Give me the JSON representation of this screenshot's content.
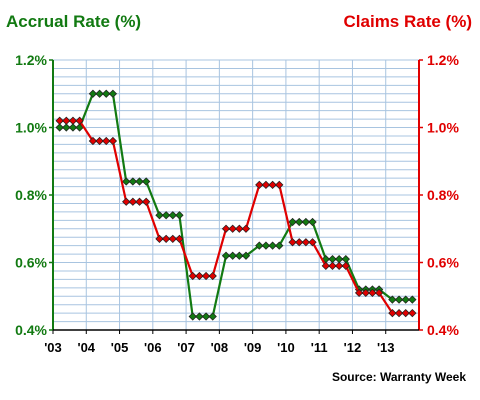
{
  "chart_data": {
    "type": "line",
    "left_axis_title": "Accrual Rate (%)",
    "right_axis_title": "Claims Rate (%)",
    "source": "Source: Warranty Week",
    "ylim": [
      0.4,
      1.2
    ],
    "yticks": [
      "0.4%",
      "0.6%",
      "0.8%",
      "1.0%",
      "1.2%"
    ],
    "xticks": [
      "'03",
      "'04",
      "'05",
      "'06",
      "'07",
      "'08",
      "'09",
      "'10",
      "'11",
      "'12",
      "'13"
    ],
    "grid": true,
    "x": [
      "2003 Q1",
      "2003 Q2",
      "2003 Q3",
      "2003 Q4",
      "2004 Q1",
      "2004 Q2",
      "2004 Q3",
      "2004 Q4",
      "2005 Q1",
      "2005 Q2",
      "2005 Q3",
      "2005 Q4",
      "2006 Q1",
      "2006 Q2",
      "2006 Q3",
      "2006 Q4",
      "2007 Q1",
      "2007 Q2",
      "2007 Q3",
      "2007 Q4",
      "2008 Q1",
      "2008 Q2",
      "2008 Q3",
      "2008 Q4",
      "2009 Q1",
      "2009 Q2",
      "2009 Q3",
      "2009 Q4",
      "2010 Q1",
      "2010 Q2",
      "2010 Q3",
      "2010 Q4",
      "2011 Q1",
      "2011 Q2",
      "2011 Q3",
      "2011 Q4",
      "2012 Q1",
      "2012 Q2",
      "2012 Q3",
      "2012 Q4",
      "2013 Q1",
      "2013 Q2",
      "2013 Q3",
      "2013 Q4"
    ],
    "series": [
      {
        "name": "Accrual Rate (%)",
        "color": "#127a12",
        "values": [
          1.0,
          1.0,
          1.0,
          1.0,
          1.1,
          1.1,
          1.1,
          1.1,
          0.84,
          0.84,
          0.84,
          0.84,
          0.74,
          0.74,
          0.74,
          0.74,
          0.44,
          0.44,
          0.44,
          0.44,
          0.62,
          0.62,
          0.62,
          0.62,
          0.65,
          0.65,
          0.65,
          0.65,
          0.72,
          0.72,
          0.72,
          0.72,
          0.61,
          0.61,
          0.61,
          0.61,
          0.52,
          0.52,
          0.52,
          0.52,
          0.49,
          0.49,
          0.49,
          0.49
        ]
      },
      {
        "name": "Claims Rate (%)",
        "color": "#e00000",
        "values": [
          1.02,
          1.02,
          1.02,
          1.02,
          0.96,
          0.96,
          0.96,
          0.96,
          0.78,
          0.78,
          0.78,
          0.78,
          0.67,
          0.67,
          0.67,
          0.67,
          0.56,
          0.56,
          0.56,
          0.56,
          0.7,
          0.7,
          0.7,
          0.7,
          0.83,
          0.83,
          0.83,
          0.83,
          0.66,
          0.66,
          0.66,
          0.66,
          0.59,
          0.59,
          0.59,
          0.59,
          0.51,
          0.51,
          0.51,
          0.51,
          0.45,
          0.45,
          0.45,
          0.45
        ]
      }
    ]
  }
}
